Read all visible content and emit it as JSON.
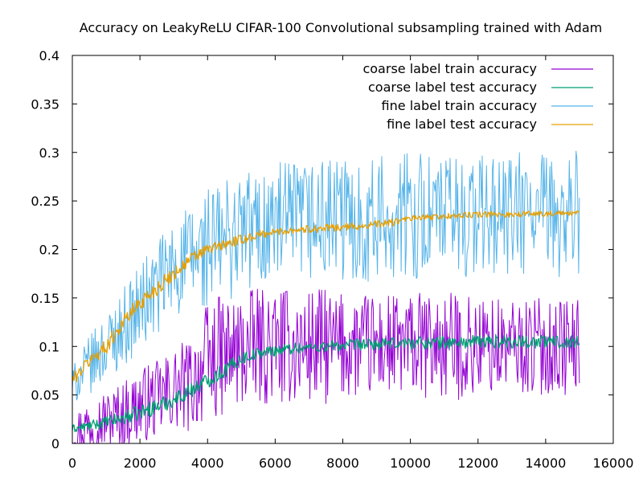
{
  "chart_data": {
    "type": "line",
    "title": "Accuracy on LeakyReLU CIFAR-100 Convolutional subsampling trained with Adam",
    "xlabel": "",
    "ylabel": "",
    "xlim": [
      0,
      16000
    ],
    "ylim": [
      0,
      0.4
    ],
    "x_ticks": [
      0,
      2000,
      4000,
      6000,
      8000,
      10000,
      12000,
      14000,
      16000
    ],
    "y_ticks": [
      0,
      0.05,
      0.1,
      0.15,
      0.2,
      0.25,
      0.3,
      0.35,
      0.4
    ],
    "grid": false,
    "legend_position": "top-right",
    "series": [
      {
        "name": "coarse label train accuracy",
        "color": "#9400d3",
        "x": [
          0,
          500,
          1000,
          1500,
          2000,
          2500,
          3000,
          3500,
          4000,
          4500,
          5000,
          5500,
          6000,
          6500,
          7000,
          7500,
          8000,
          8500,
          9000,
          9500,
          10000,
          10500,
          11000,
          11500,
          12000,
          12500,
          13000,
          13500,
          14000,
          14500,
          15000
        ],
        "y": [
          0.01,
          0.02,
          0.025,
          0.03,
          0.04,
          0.045,
          0.055,
          0.06,
          0.085,
          0.09,
          0.095,
          0.1,
          0.1,
          0.1,
          0.1,
          0.1,
          0.1,
          0.1,
          0.1,
          0.1,
          0.1,
          0.1,
          0.1,
          0.1,
          0.1,
          0.1,
          0.1,
          0.1,
          0.1,
          0.1,
          0.1
        ],
        "noise": [
          0.02,
          0.03,
          0.03,
          0.035,
          0.04,
          0.04,
          0.045,
          0.05,
          0.06,
          0.065,
          0.06,
          0.06,
          0.06,
          0.06,
          0.06,
          0.06,
          0.055,
          0.055,
          0.055,
          0.055,
          0.055,
          0.055,
          0.055,
          0.055,
          0.055,
          0.05,
          0.05,
          0.05,
          0.05,
          0.05,
          0.05
        ]
      },
      {
        "name": "coarse label test accuracy",
        "color": "#009e73",
        "x": [
          0,
          500,
          1000,
          1500,
          2000,
          2500,
          3000,
          3500,
          4000,
          4500,
          5000,
          5500,
          6000,
          6500,
          7000,
          7500,
          8000,
          8500,
          9000,
          9500,
          10000,
          10500,
          11000,
          11500,
          12000,
          12500,
          13000,
          13500,
          14000,
          14500,
          15000
        ],
        "y": [
          0.015,
          0.018,
          0.022,
          0.026,
          0.032,
          0.038,
          0.045,
          0.055,
          0.065,
          0.075,
          0.088,
          0.093,
          0.096,
          0.098,
          0.099,
          0.1,
          0.101,
          0.102,
          0.102,
          0.103,
          0.104,
          0.104,
          0.104,
          0.104,
          0.105,
          0.105,
          0.105,
          0.105,
          0.105,
          0.105,
          0.105
        ],
        "noise": [
          0.004,
          0.005,
          0.006,
          0.007,
          0.008,
          0.008,
          0.008,
          0.008,
          0.008,
          0.008,
          0.007,
          0.006,
          0.006,
          0.006,
          0.006,
          0.006,
          0.006,
          0.006,
          0.006,
          0.006,
          0.007,
          0.007,
          0.007,
          0.007,
          0.007,
          0.007,
          0.007,
          0.007,
          0.007,
          0.007,
          0.007
        ]
      },
      {
        "name": "fine label train accuracy",
        "color": "#56b4e9",
        "x": [
          0,
          500,
          1000,
          1500,
          2000,
          2500,
          3000,
          3500,
          4000,
          4500,
          5000,
          5500,
          6000,
          6500,
          7000,
          7500,
          8000,
          8500,
          9000,
          9500,
          10000,
          10500,
          11000,
          11500,
          12000,
          12500,
          13000,
          13500,
          14000,
          14500,
          15000
        ],
        "y": [
          0.06,
          0.08,
          0.1,
          0.12,
          0.14,
          0.16,
          0.18,
          0.19,
          0.2,
          0.21,
          0.22,
          0.22,
          0.225,
          0.225,
          0.23,
          0.23,
          0.23,
          0.23,
          0.23,
          0.235,
          0.235,
          0.235,
          0.235,
          0.235,
          0.235,
          0.235,
          0.235,
          0.235,
          0.235,
          0.235,
          0.24
        ],
        "noise": [
          0.02,
          0.03,
          0.035,
          0.04,
          0.045,
          0.05,
          0.055,
          0.06,
          0.065,
          0.065,
          0.065,
          0.065,
          0.065,
          0.065,
          0.065,
          0.065,
          0.065,
          0.065,
          0.065,
          0.065,
          0.065,
          0.065,
          0.065,
          0.065,
          0.065,
          0.065,
          0.065,
          0.065,
          0.065,
          0.065,
          0.065
        ]
      },
      {
        "name": "fine label test accuracy",
        "color": "#e69f00",
        "x": [
          0,
          500,
          1000,
          1500,
          2000,
          2500,
          3000,
          3500,
          4000,
          4500,
          5000,
          5500,
          6000,
          6500,
          7000,
          7500,
          8000,
          8500,
          9000,
          9500,
          10000,
          10500,
          11000,
          11500,
          12000,
          12500,
          13000,
          13500,
          14000,
          14500,
          15000
        ],
        "y": [
          0.065,
          0.085,
          0.1,
          0.125,
          0.145,
          0.16,
          0.175,
          0.19,
          0.2,
          0.205,
          0.21,
          0.215,
          0.218,
          0.22,
          0.221,
          0.222,
          0.223,
          0.224,
          0.226,
          0.228,
          0.232,
          0.233,
          0.234,
          0.235,
          0.236,
          0.236,
          0.236,
          0.237,
          0.237,
          0.237,
          0.237
        ],
        "noise": [
          0.006,
          0.007,
          0.008,
          0.008,
          0.008,
          0.008,
          0.007,
          0.007,
          0.006,
          0.006,
          0.005,
          0.005,
          0.004,
          0.004,
          0.004,
          0.004,
          0.004,
          0.004,
          0.004,
          0.004,
          0.003,
          0.003,
          0.003,
          0.003,
          0.003,
          0.003,
          0.003,
          0.003,
          0.003,
          0.003,
          0.003
        ]
      }
    ]
  }
}
